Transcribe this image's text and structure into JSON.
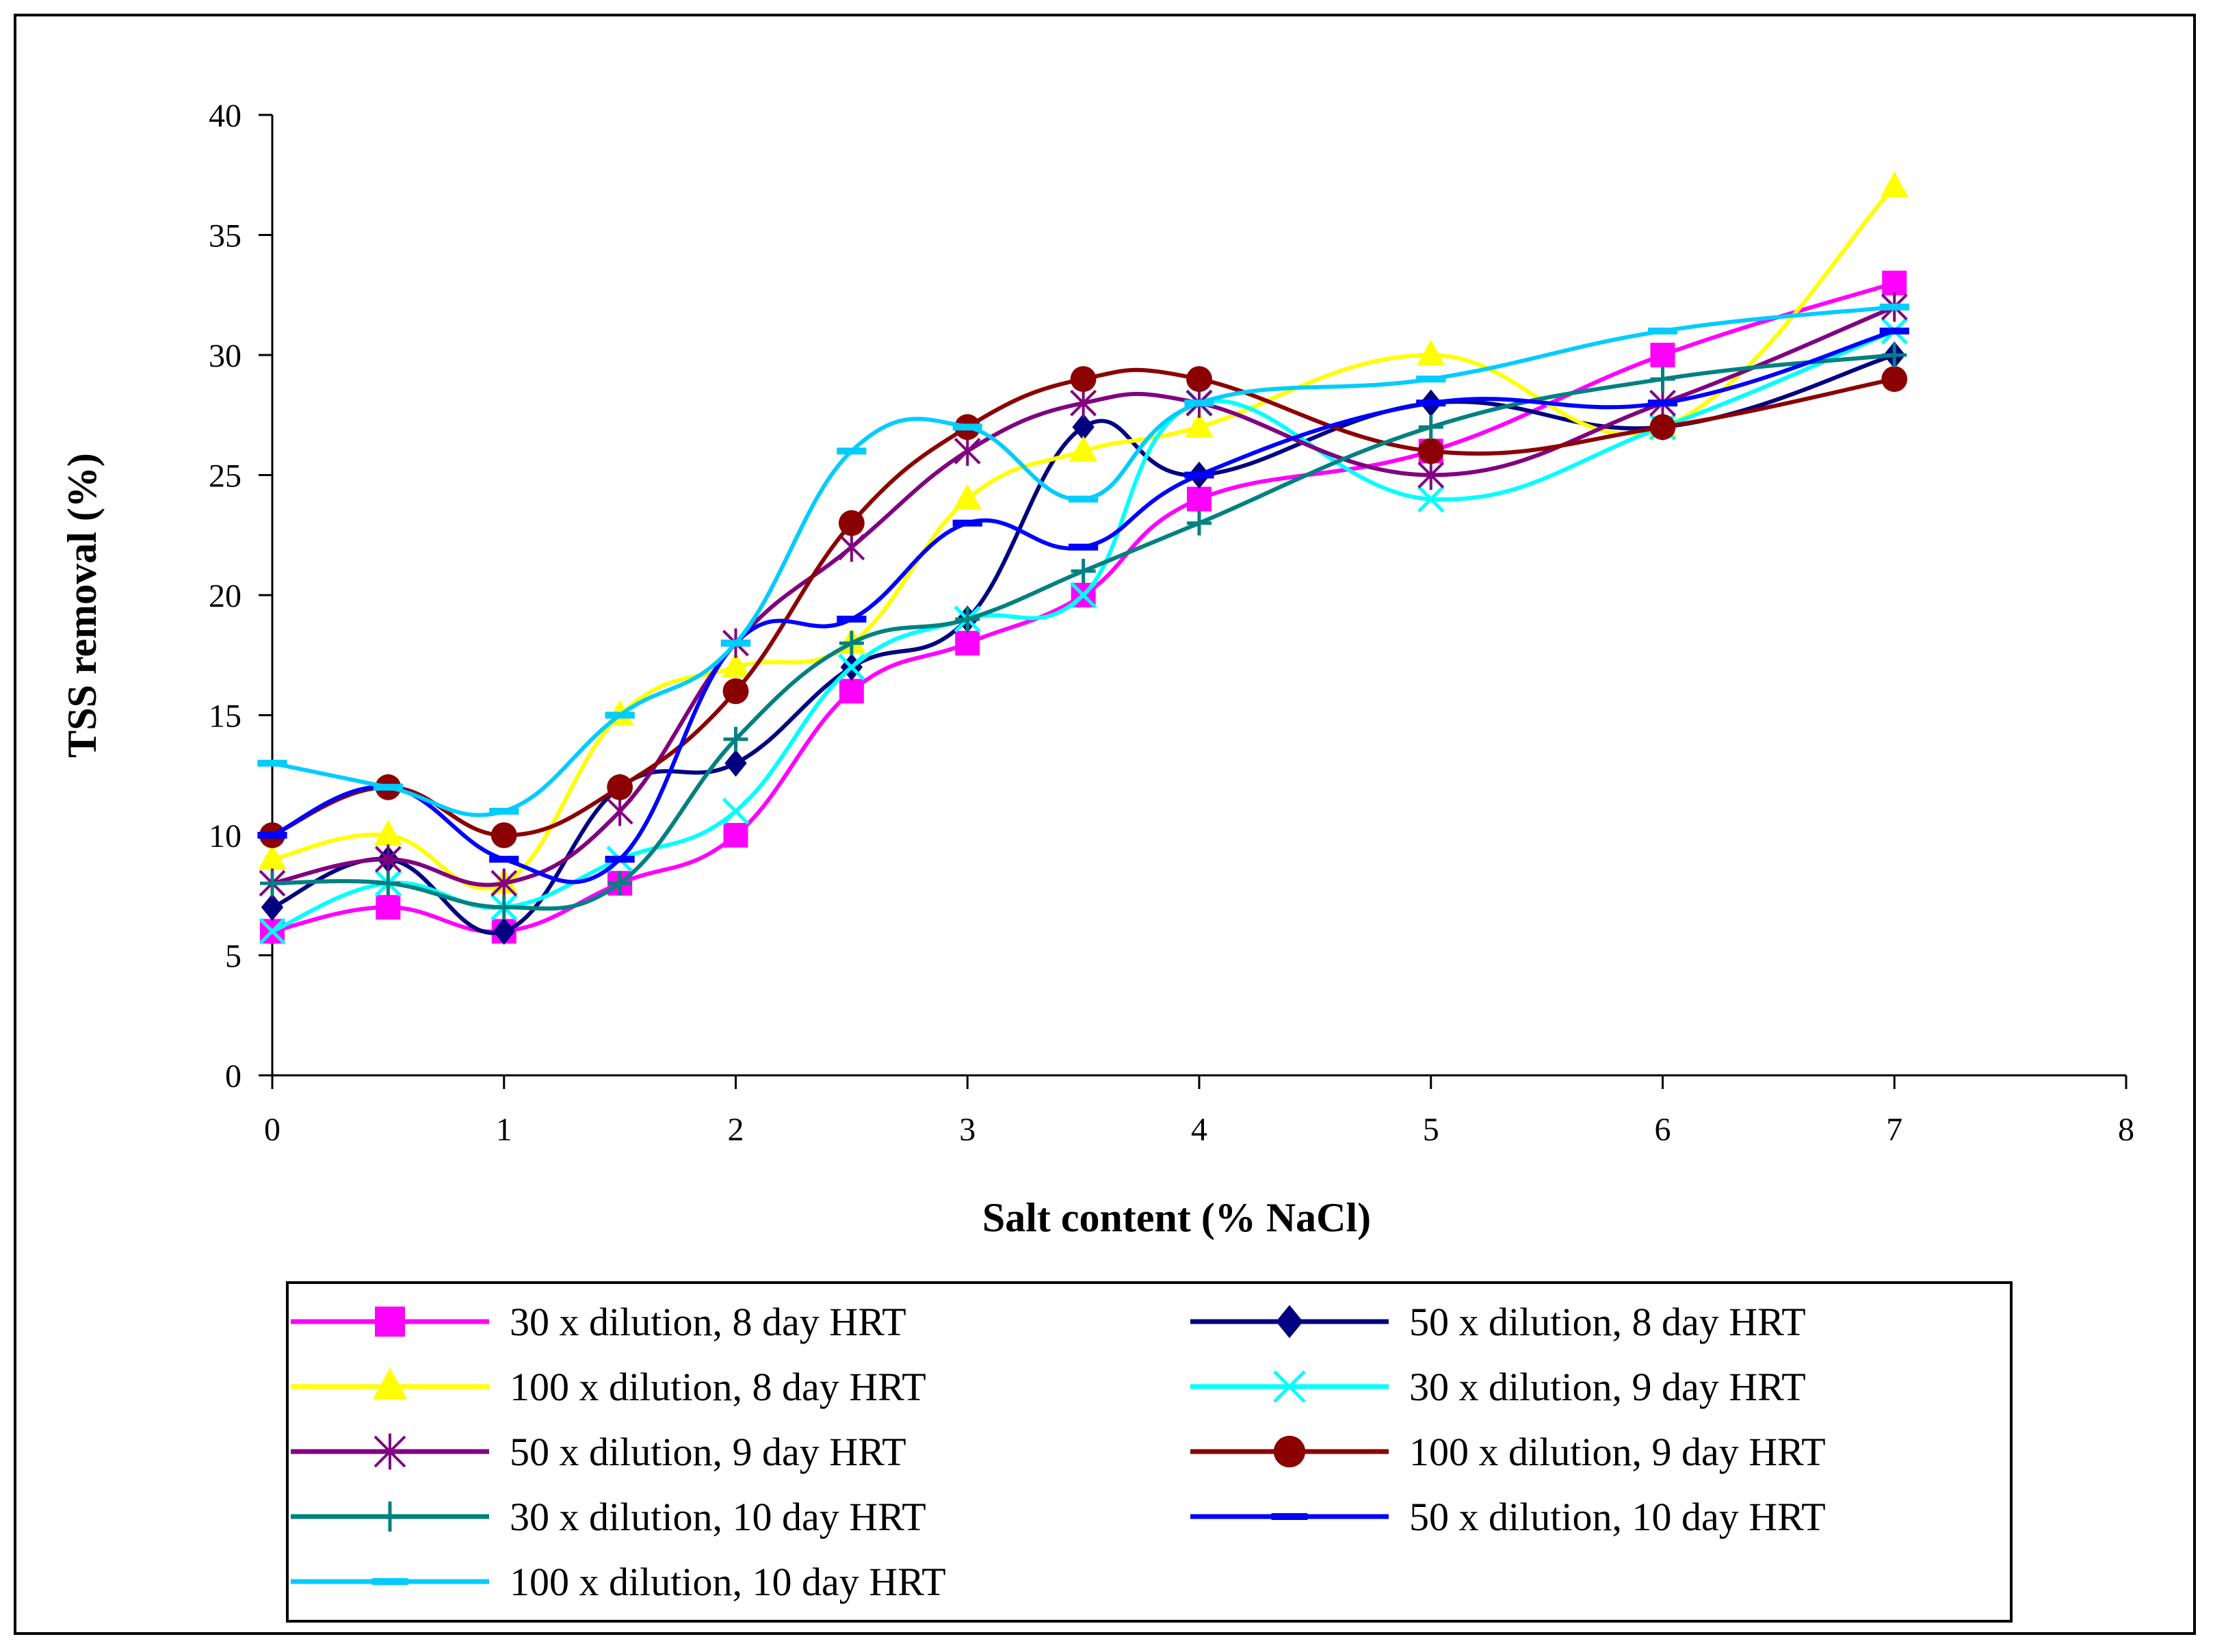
{
  "chart_data": {
    "type": "line",
    "title": "",
    "xlabel": "Salt content (% NaCl)",
    "ylabel": "TSS removal (%)",
    "xlim": [
      0,
      8
    ],
    "ylim": [
      0,
      40
    ],
    "xticks": [
      0,
      1,
      2,
      3,
      4,
      5,
      6,
      7,
      8
    ],
    "yticks": [
      0,
      5,
      10,
      15,
      20,
      25,
      30,
      35,
      40
    ],
    "grid": false,
    "legend_position": "bottom",
    "x": [
      0,
      0.5,
      1,
      1.5,
      2,
      2.5,
      3,
      3.5,
      4,
      5,
      6,
      7
    ],
    "series": [
      {
        "name": "30 x dilution, 8 day HRT",
        "color": "#ff00ff",
        "marker": "square",
        "values": [
          6,
          7,
          6,
          8,
          10,
          16,
          18,
          20,
          24,
          26,
          30,
          33
        ]
      },
      {
        "name": "50 x dilution, 8 day HRT",
        "color": "#000080",
        "marker": "diamond",
        "values": [
          7,
          9,
          6,
          12,
          13,
          17,
          19,
          27,
          25,
          28,
          27,
          30
        ]
      },
      {
        "name": "100 x dilution, 8 day HRT",
        "color": "#ffff00",
        "marker": "triangle",
        "values": [
          9,
          10,
          8,
          15,
          17,
          18,
          24,
          26,
          27,
          30,
          27,
          37
        ]
      },
      {
        "name": "30 x dilution, 9 day HRT",
        "color": "#00ffff",
        "marker": "x",
        "values": [
          6,
          8,
          7,
          9,
          11,
          17,
          19,
          20,
          28,
          24,
          27,
          31
        ]
      },
      {
        "name": "50 x dilution, 9 day HRT",
        "color": "#800080",
        "marker": "asterisk",
        "values": [
          8,
          9,
          8,
          11,
          18,
          22,
          26,
          28,
          28,
          25,
          28,
          32
        ]
      },
      {
        "name": "100 x dilution, 9 day HRT",
        "color": "#8b0000",
        "marker": "circle",
        "values": [
          10,
          12,
          10,
          12,
          16,
          23,
          27,
          29,
          29,
          26,
          27,
          29
        ]
      },
      {
        "name": "30 x dilution, 10 day HRT",
        "color": "#008080",
        "marker": "plus",
        "values": [
          8,
          8,
          7,
          8,
          14,
          18,
          19,
          21,
          23,
          27,
          29,
          30
        ]
      },
      {
        "name": "50 x dilution, 10 day HRT",
        "color": "#0000ff",
        "marker": "dash",
        "values": [
          10,
          12,
          9,
          9,
          18,
          19,
          23,
          22,
          25,
          28,
          28,
          31
        ]
      },
      {
        "name": "100 x dilution, 10 day HRT",
        "color": "#00ccff",
        "marker": "dash",
        "values": [
          13,
          12,
          11,
          15,
          18,
          26,
          27,
          24,
          28,
          29,
          31,
          32
        ]
      }
    ]
  }
}
